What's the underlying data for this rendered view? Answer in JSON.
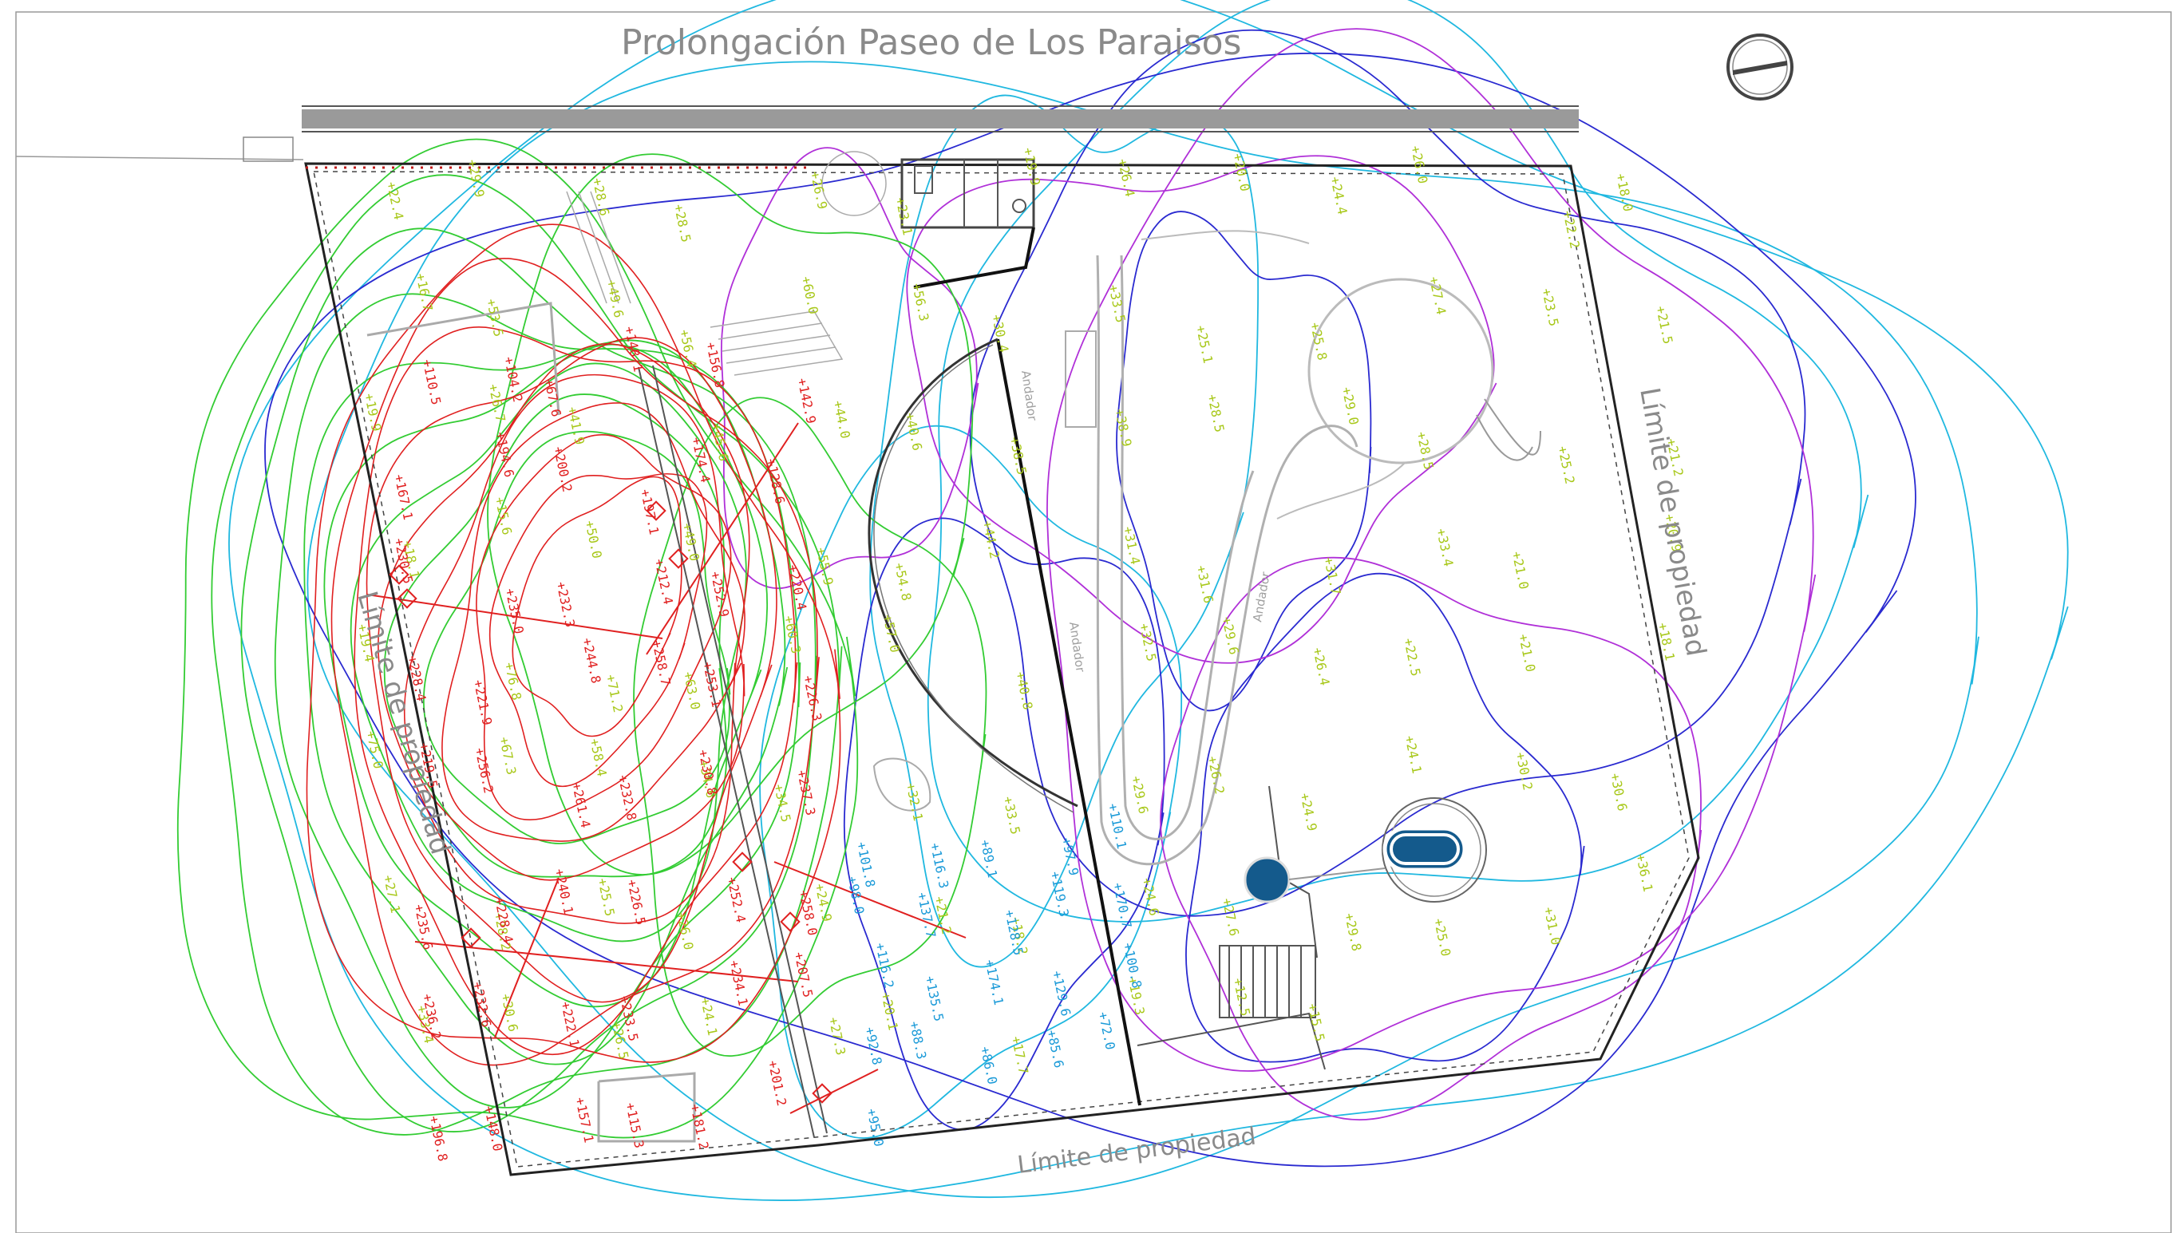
{
  "labels": {
    "road": "Prolongación Paseo de Los Paraisos",
    "limit_west": "Límite de propiedad",
    "limit_east": "Límite de propiedad",
    "limit_south": "Límite de propiedad",
    "andador_1": "Andador",
    "andador_2": "Andador",
    "andador_3": "Andador"
  },
  "contour_colors": {
    "green": "#33cc33",
    "red": "#e02020",
    "blue": "#2a2ad0",
    "magenta": "#b030d8",
    "cyan": "#20b8e0"
  },
  "elevation_colors": {
    "yellow_green": "#a8c81a",
    "red": "#e02020",
    "blue": "#1a9ad8"
  },
  "pool_color": "#145a8c",
  "icons": {
    "north_arrow": "north-arrow-icon"
  },
  "elevations_yellow": [
    "22.4",
    "29.9",
    "28.6",
    "28.5",
    "26.9",
    "23.1",
    "19.9",
    "26.4",
    "20.0",
    "24.4",
    "26.0",
    "22.2",
    "18.0",
    "16.7",
    "53.5",
    "49.6",
    "56.4",
    "60.0",
    "56.3",
    "30.4",
    "33.5",
    "25.1",
    "25.8",
    "27.4",
    "23.5",
    "21.5",
    "19.9",
    "26.7",
    "41.9",
    "45.6",
    "44.0",
    "40.6",
    "38.5",
    "38.9",
    "28.5",
    "29.0",
    "28.5",
    "25.2",
    "21.2",
    "18.1",
    "15.6",
    "50.0",
    "49.0",
    "55.9",
    "54.8",
    "44.2",
    "31.4",
    "31.6",
    "31.7",
    "33.4",
    "21.0",
    "20.9",
    "19.4",
    "76.8",
    "71.2",
    "63.0",
    "60.3",
    "57.0",
    "40.8",
    "32.5",
    "29.6",
    "26.4",
    "22.5",
    "21.0",
    "18.1",
    "75.0",
    "67.3",
    "58.4",
    "34.6",
    "34.5",
    "32.1",
    "33.5",
    "29.6",
    "26.2",
    "24.9",
    "24.1",
    "30.2",
    "30.6",
    "27.1",
    "28.2",
    "25.5",
    "26.0",
    "24.9",
    "21.2",
    "18.2",
    "24.6",
    "27.6",
    "29.8",
    "25.0",
    "31.0",
    "36.1",
    "33.4",
    "30.6",
    "26.5",
    "24.1",
    "27.3",
    "20.1",
    "17.7",
    "19.3",
    "12.5",
    "15.5"
  ],
  "elevations_red": [
    "110.5",
    "104.2",
    "67.6",
    "148.1",
    "156.8",
    "142.9",
    "167.1",
    "194.6",
    "200.2",
    "197.1",
    "174.4",
    "128.6",
    "230.5",
    "235.0",
    "232.3",
    "212.4",
    "252.9",
    "220.4",
    "228.4",
    "221.9",
    "244.8",
    "258.7",
    "253.1",
    "226.3",
    "219.5",
    "256.2",
    "261.4",
    "232.8",
    "230.8",
    "237.3",
    "235.6",
    "228.4",
    "240.1",
    "226.5",
    "252.4",
    "258.0",
    "236.2",
    "232.6",
    "222.1",
    "233.5",
    "234.1",
    "207.5",
    "196.8",
    "148.0",
    "157.1",
    "115.3",
    "181.2",
    "201.2"
  ],
  "elevations_blue": [
    "101.8",
    "116.3",
    "89.1",
    "97.9",
    "110.1",
    "98.0",
    "137.7",
    "128.5",
    "119.3",
    "170.7",
    "116.2",
    "135.5",
    "174.1",
    "129.6",
    "100.8",
    "92.8",
    "88.3",
    "86.0",
    "85.6",
    "72.0",
    "95.0"
  ]
}
